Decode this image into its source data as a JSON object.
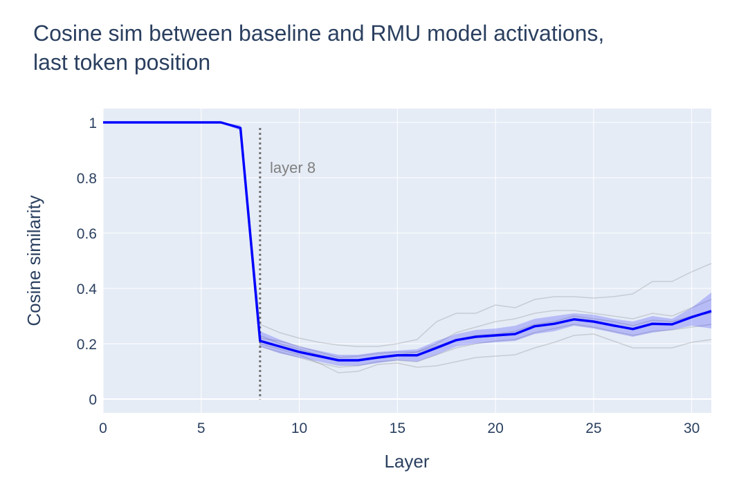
{
  "chart_data": {
    "type": "line",
    "title_lines": [
      "Cosine sim between baseline and RMU model activations,",
      "last token position"
    ],
    "xlabel": "Layer",
    "ylabel": "Cosine similarity",
    "xlim": [
      0,
      31
    ],
    "ylim": [
      -0.05,
      1.05
    ],
    "x_ticks": [
      0,
      5,
      10,
      15,
      20,
      25,
      30
    ],
    "y_ticks": [
      0,
      0.2,
      0.4,
      0.6,
      0.8,
      1
    ],
    "y_tick_labels": [
      "0",
      "0.2",
      "0.4",
      "0.6",
      "0.8",
      "1"
    ],
    "grid": true,
    "colors": {
      "plot_bg": "#e5ecf6",
      "grid": "#ffffff",
      "text": "#2a3f5f",
      "mean_line": "#0000ff",
      "band_fill": "rgba(0,0,255,0.2)",
      "individual_lines": "rgba(128,128,128,0.3)",
      "vline": "#707070",
      "annotation_text": "#808080"
    },
    "vline": {
      "x": 8,
      "style": "dotted"
    },
    "annotations": [
      {
        "text": "layer 8",
        "x": 8.5,
        "y": 0.84
      }
    ],
    "mean_series": {
      "x": [
        0,
        1,
        2,
        3,
        4,
        5,
        6,
        7,
        8,
        9,
        10,
        11,
        12,
        13,
        14,
        15,
        16,
        17,
        18,
        19,
        20,
        21,
        22,
        23,
        24,
        25,
        26,
        27,
        28,
        29,
        30,
        31
      ],
      "values": [
        1,
        1,
        1,
        1,
        1,
        1,
        1,
        0.98,
        0.21,
        0.19,
        0.17,
        0.155,
        0.14,
        0.14,
        0.15,
        0.158,
        0.158,
        0.185,
        0.213,
        0.225,
        0.23,
        0.235,
        0.263,
        0.272,
        0.288,
        0.28,
        0.266,
        0.253,
        0.272,
        0.27,
        0.296,
        0.318
      ]
    },
    "band": {
      "upper": [
        1,
        1,
        1,
        1,
        1,
        1,
        1,
        0.99,
        0.245,
        0.215,
        0.19,
        0.175,
        0.16,
        0.16,
        0.17,
        0.175,
        0.18,
        0.21,
        0.235,
        0.25,
        0.255,
        0.265,
        0.29,
        0.3,
        0.31,
        0.305,
        0.29,
        0.28,
        0.3,
        0.29,
        0.33,
        0.385
      ],
      "lower": [
        1,
        1,
        1,
        1,
        1,
        1,
        1,
        0.97,
        0.19,
        0.165,
        0.15,
        0.135,
        0.12,
        0.12,
        0.13,
        0.14,
        0.135,
        0.16,
        0.19,
        0.2,
        0.205,
        0.21,
        0.235,
        0.245,
        0.265,
        0.255,
        0.24,
        0.225,
        0.24,
        0.25,
        0.265,
        0.255
      ]
    },
    "individual_series": [
      {
        "x": [
          8,
          9,
          10,
          11,
          12,
          13,
          14,
          15,
          16,
          17,
          18,
          19,
          20,
          21,
          22,
          23,
          24,
          25,
          26,
          27,
          28,
          29,
          30,
          31
        ],
        "values": [
          0.27,
          0.24,
          0.22,
          0.205,
          0.195,
          0.19,
          0.19,
          0.2,
          0.215,
          0.28,
          0.31,
          0.31,
          0.34,
          0.33,
          0.36,
          0.37,
          0.37,
          0.365,
          0.37,
          0.38,
          0.425,
          0.425,
          0.46,
          0.49
        ]
      },
      {
        "x": [
          8,
          9,
          10,
          11,
          12,
          13,
          14,
          15,
          16,
          17,
          18,
          19,
          20,
          21,
          22,
          23,
          24,
          25,
          26,
          27,
          28,
          29,
          30,
          31
        ],
        "values": [
          0.2,
          0.18,
          0.16,
          0.13,
          0.095,
          0.1,
          0.125,
          0.13,
          0.115,
          0.12,
          0.135,
          0.15,
          0.155,
          0.16,
          0.185,
          0.205,
          0.23,
          0.235,
          0.21,
          0.185,
          0.185,
          0.185,
          0.205,
          0.215
        ]
      },
      {
        "x": [
          8,
          9,
          10,
          11,
          12,
          13,
          14,
          15,
          16,
          17,
          18,
          19,
          20,
          21,
          22,
          23,
          24,
          25,
          26,
          27,
          28,
          29,
          30,
          31
        ],
        "values": [
          0.23,
          0.2,
          0.18,
          0.16,
          0.14,
          0.14,
          0.15,
          0.16,
          0.17,
          0.2,
          0.24,
          0.26,
          0.28,
          0.29,
          0.31,
          0.32,
          0.32,
          0.31,
          0.3,
          0.29,
          0.31,
          0.3,
          0.33,
          0.36
        ]
      },
      {
        "x": [
          8,
          9,
          10,
          11,
          12,
          13,
          14,
          15,
          16,
          17,
          18,
          19,
          20,
          21,
          22,
          23,
          24,
          25,
          26,
          27,
          28,
          29,
          30,
          31
        ],
        "values": [
          0.19,
          0.17,
          0.15,
          0.13,
          0.115,
          0.12,
          0.135,
          0.14,
          0.135,
          0.16,
          0.185,
          0.2,
          0.21,
          0.215,
          0.24,
          0.255,
          0.27,
          0.26,
          0.245,
          0.23,
          0.245,
          0.25,
          0.26,
          0.27
        ]
      },
      {
        "x": [
          8,
          9,
          10,
          11,
          12,
          13,
          14,
          15,
          16,
          17,
          18,
          19,
          20,
          21,
          22,
          23,
          24,
          25,
          26,
          27,
          28,
          29,
          30,
          31
        ],
        "values": [
          0.22,
          0.21,
          0.19,
          0.17,
          0.15,
          0.155,
          0.165,
          0.17,
          0.17,
          0.19,
          0.215,
          0.23,
          0.235,
          0.245,
          0.27,
          0.28,
          0.3,
          0.29,
          0.28,
          0.265,
          0.285,
          0.28,
          0.3,
          0.31
        ]
      }
    ]
  }
}
